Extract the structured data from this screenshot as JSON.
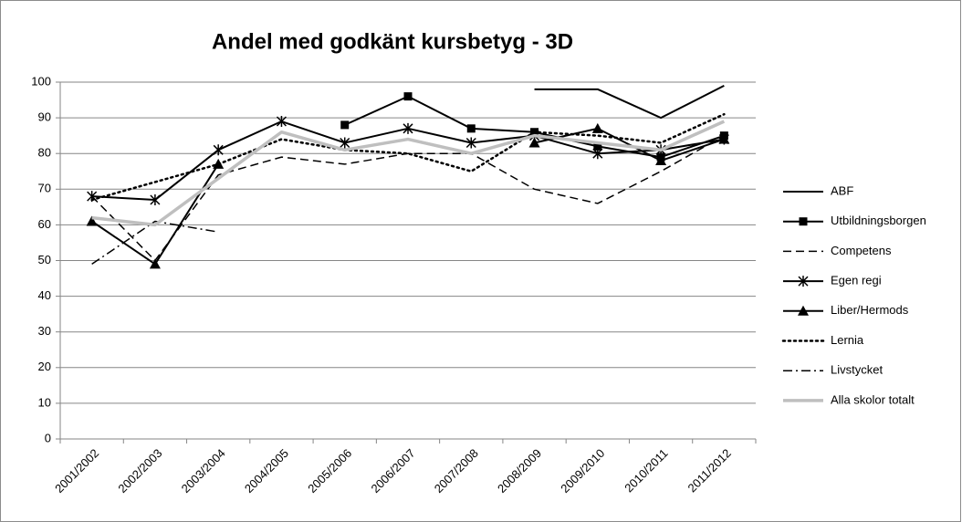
{
  "chart_data": {
    "type": "line",
    "title": "Andel med godkänt kursbetyg - 3D",
    "categories": [
      "2001/2002",
      "2002/2003",
      "2003/2004",
      "2004/2005",
      "2005/2006",
      "2006/2007",
      "2007/2008",
      "2008/2009",
      "2009/2010",
      "2010/2011",
      "2011/2012"
    ],
    "ylim": [
      0,
      100
    ],
    "yticks": [
      0,
      10,
      20,
      30,
      40,
      50,
      60,
      70,
      80,
      90,
      100
    ],
    "grid": true,
    "legend": "right",
    "series": [
      {
        "name": "ABF",
        "color": "#000000",
        "dash": "solid",
        "marker": null,
        "values": [
          null,
          null,
          null,
          null,
          null,
          null,
          null,
          98,
          98,
          90,
          99
        ]
      },
      {
        "name": "Utbildningsborgen",
        "color": "#000000",
        "dash": "solid",
        "marker": "square",
        "values": [
          null,
          null,
          null,
          null,
          88,
          96,
          87,
          86,
          82,
          79,
          85
        ]
      },
      {
        "name": "Competens",
        "color": "#000000",
        "dash": "dashed",
        "marker": null,
        "values": [
          68,
          50,
          74,
          79,
          77,
          80,
          80,
          70,
          66,
          75,
          85
        ]
      },
      {
        "name": "Egen regi",
        "color": "#000000",
        "dash": "solid",
        "marker": "star",
        "values": [
          68,
          67,
          81,
          89,
          83,
          87,
          83,
          85,
          80,
          81,
          84
        ]
      },
      {
        "name": "Liber/Hermods",
        "color": "#000000",
        "dash": "solid",
        "marker": "triangle",
        "values": [
          61,
          49,
          77,
          null,
          null,
          null,
          null,
          83,
          87,
          78,
          84
        ]
      },
      {
        "name": "Lernia",
        "color": "#000000",
        "dash": "dotted",
        "marker": null,
        "values": [
          67,
          72,
          77,
          84,
          81,
          80,
          75,
          86,
          85,
          83,
          91
        ]
      },
      {
        "name": "Livstycket",
        "color": "#000000",
        "dash": "dashdot",
        "marker": null,
        "values": [
          49,
          61,
          58,
          null,
          null,
          null,
          null,
          null,
          null,
          null,
          null
        ]
      },
      {
        "name": "Alla skolor totalt",
        "color": "#bfbfbf",
        "dash": "thick",
        "marker": null,
        "values": [
          62,
          60,
          73,
          86,
          81,
          84,
          80,
          85,
          83,
          81,
          89
        ]
      }
    ]
  }
}
